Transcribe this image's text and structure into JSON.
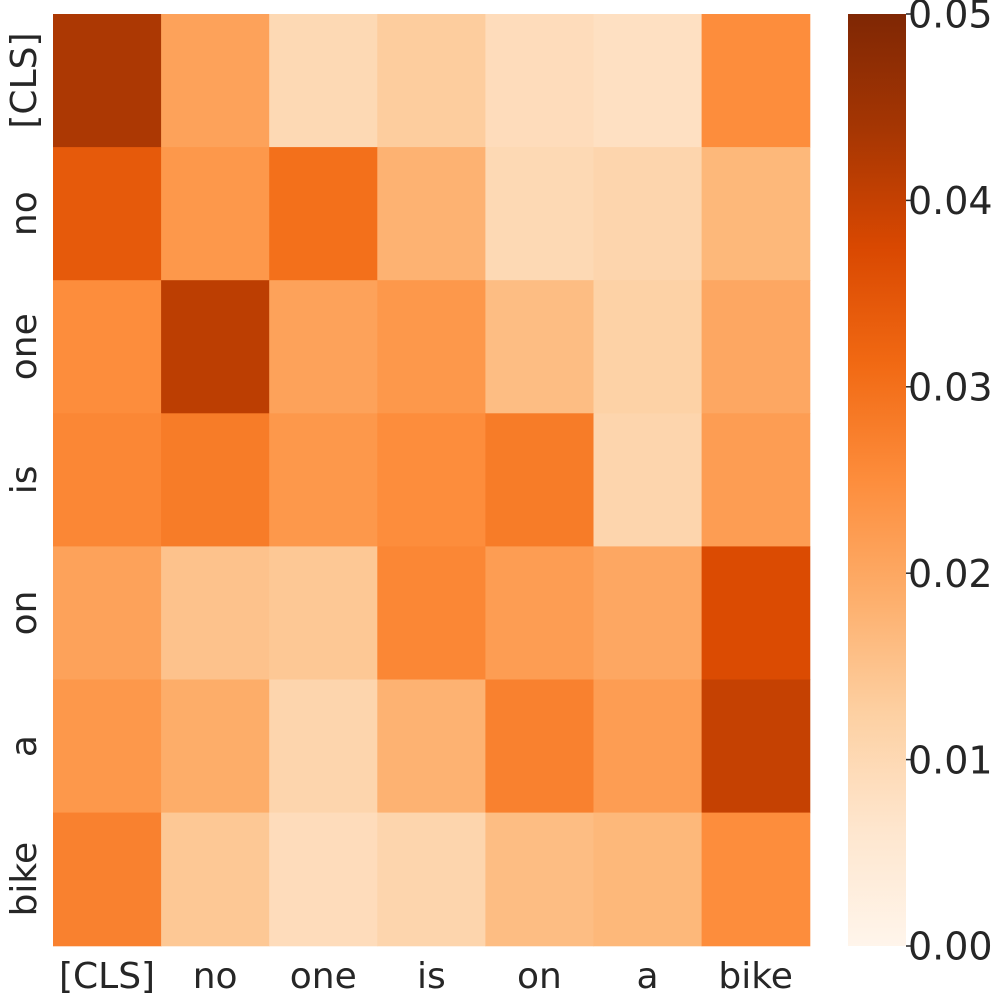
{
  "chart_data": {
    "type": "heatmap",
    "x_tokens": [
      "[CLS]",
      "no",
      "one",
      "is",
      "on",
      "a",
      "bike"
    ],
    "y_tokens": [
      "[CLS]",
      "no",
      "one",
      "is",
      "on",
      "a",
      "bike"
    ],
    "values": [
      [
        0.043,
        0.021,
        0.01,
        0.013,
        0.009,
        0.008,
        0.025
      ],
      [
        0.034,
        0.023,
        0.03,
        0.018,
        0.01,
        0.011,
        0.017
      ],
      [
        0.025,
        0.041,
        0.021,
        0.023,
        0.016,
        0.012,
        0.02
      ],
      [
        0.026,
        0.028,
        0.023,
        0.025,
        0.028,
        0.011,
        0.022
      ],
      [
        0.021,
        0.015,
        0.014,
        0.026,
        0.022,
        0.02,
        0.037
      ],
      [
        0.023,
        0.019,
        0.011,
        0.018,
        0.027,
        0.022,
        0.04
      ],
      [
        0.027,
        0.014,
        0.009,
        0.011,
        0.016,
        0.017,
        0.025
      ]
    ],
    "colormap": "Oranges",
    "vmin": 0.0,
    "vmax": 0.05,
    "colorbar_ticks": [
      "0.00",
      "0.01",
      "0.02",
      "0.03",
      "0.04",
      "0.05"
    ],
    "colorbar_tick_values": [
      0.0,
      0.01,
      0.02,
      0.03,
      0.04,
      0.05
    ],
    "title": "",
    "xlabel": "",
    "ylabel": "",
    "grid": false,
    "colorbar_placement": "right"
  }
}
